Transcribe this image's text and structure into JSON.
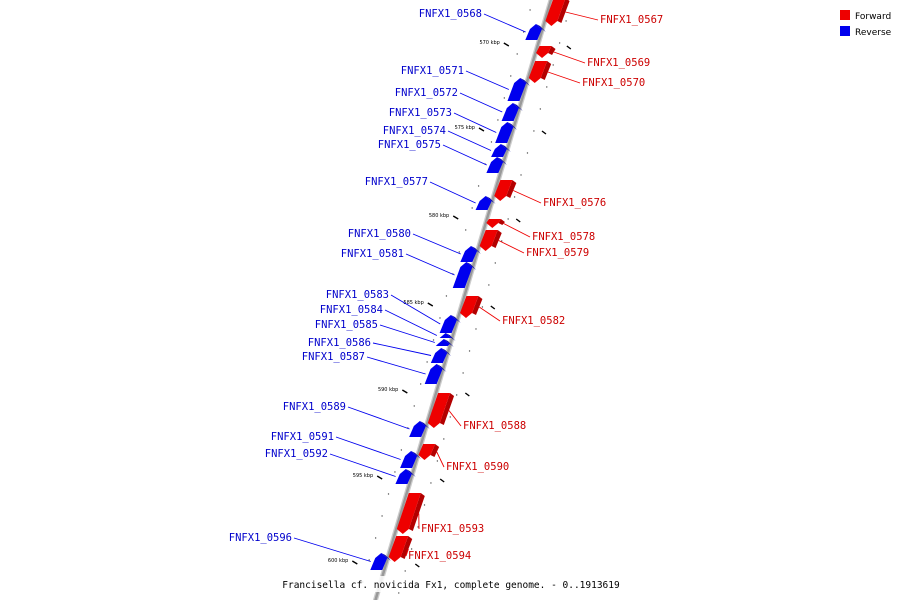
{
  "legend": [
    {
      "label": "Forward",
      "color": "#ee0000"
    },
    {
      "label": "Reverse",
      "color": "#0000ee"
    }
  ],
  "caption": "Francisella cf. novicida Fx1, complete genome. - 0..1913619",
  "colors": {
    "forward": "#ee0000",
    "forward_dark": "#b30000",
    "reverse": "#0000ee",
    "reverse_dark": "#0000a0",
    "backbone": "#999999"
  },
  "ticks": [
    "570 kbp",
    "575 kbp",
    "580 kbp",
    "585 kbp",
    "590 kbp",
    "595 kbp",
    "600 kbp"
  ],
  "genes": [
    {
      "name": "FNFX1_0567",
      "strand": "forward"
    },
    {
      "name": "FNFX1_0568",
      "strand": "reverse"
    },
    {
      "name": "FNFX1_0569",
      "strand": "forward"
    },
    {
      "name": "FNFX1_0570",
      "strand": "forward"
    },
    {
      "name": "FNFX1_0571",
      "strand": "reverse"
    },
    {
      "name": "FNFX1_0572",
      "strand": "reverse"
    },
    {
      "name": "FNFX1_0573",
      "strand": "reverse"
    },
    {
      "name": "FNFX1_0574",
      "strand": "reverse"
    },
    {
      "name": "FNFX1_0575",
      "strand": "reverse"
    },
    {
      "name": "FNFX1_0576",
      "strand": "forward"
    },
    {
      "name": "FNFX1_0577",
      "strand": "reverse"
    },
    {
      "name": "FNFX1_0578",
      "strand": "forward"
    },
    {
      "name": "FNFX1_0579",
      "strand": "forward"
    },
    {
      "name": "FNFX1_0580",
      "strand": "reverse"
    },
    {
      "name": "FNFX1_0581",
      "strand": "reverse"
    },
    {
      "name": "FNFX1_0582",
      "strand": "forward"
    },
    {
      "name": "FNFX1_0583",
      "strand": "reverse"
    },
    {
      "name": "FNFX1_0584",
      "strand": "reverse"
    },
    {
      "name": "FNFX1_0585",
      "strand": "reverse"
    },
    {
      "name": "FNFX1_0586",
      "strand": "reverse"
    },
    {
      "name": "FNFX1_0587",
      "strand": "reverse"
    },
    {
      "name": "FNFX1_0588",
      "strand": "forward"
    },
    {
      "name": "FNFX1_0589",
      "strand": "reverse"
    },
    {
      "name": "FNFX1_0590",
      "strand": "forward"
    },
    {
      "name": "FNFX1_0591",
      "strand": "reverse"
    },
    {
      "name": "FNFX1_0592",
      "strand": "reverse"
    },
    {
      "name": "FNFX1_0593",
      "strand": "forward"
    },
    {
      "name": "FNFX1_0594",
      "strand": "forward"
    },
    {
      "name": "FNFX1_0596",
      "strand": "reverse"
    }
  ]
}
